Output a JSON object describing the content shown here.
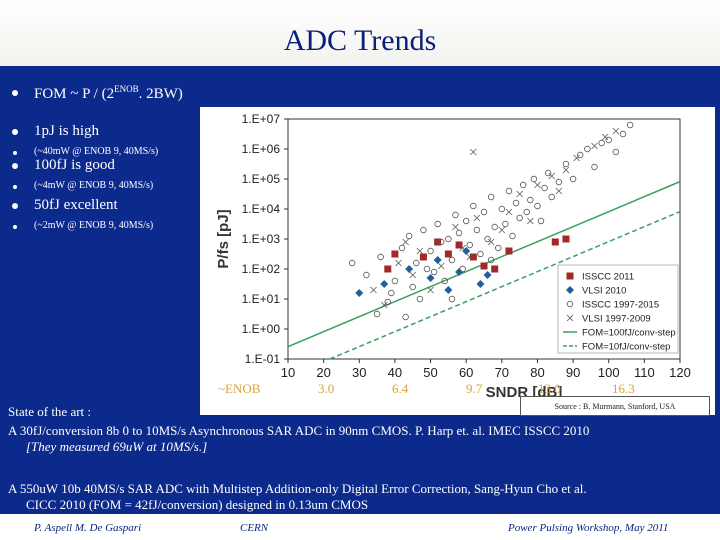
{
  "title": "ADC Trends",
  "bullets": {
    "fom_prefix": "FOM ~ P / (2",
    "fom_sup": "ENOB",
    "fom_suffix": ". 2BW)",
    "b1": "1pJ is high",
    "b1_sub": "(~40mW @ ENOB 9, 40MS/s)",
    "b2": "100fJ is good",
    "b2_sub": "(~4mW @ ENOB 9, 40MS/s)",
    "b3": "50fJ excellent",
    "b3_sub": "(~2mW @ ENOB 9, 40MS/s)"
  },
  "enob": {
    "label": "~ENOB",
    "values": [
      "3.0",
      "6.4",
      "9.7",
      "13.0",
      "16.3"
    ]
  },
  "chart_data": {
    "type": "scatter",
    "xlabel": "SNDR [dB]",
    "ylabel": "P/fs [pJ]",
    "xlim": [
      10,
      120
    ],
    "ylim_log10": [
      -1,
      7
    ],
    "x_ticks": [
      "10",
      "20",
      "30",
      "40",
      "50",
      "60",
      "70",
      "80",
      "90",
      "100",
      "110",
      "120"
    ],
    "y_ticks": [
      "1.E-01",
      "1.E+00",
      "1.E+01",
      "1.E+02",
      "1.E+03",
      "1.E+04",
      "1.E+05",
      "1.E+06",
      "1.E+07"
    ],
    "legend_position": "bottom-right",
    "series": [
      {
        "name": "ISSCC 2011",
        "marker": "square",
        "color": "#a02a2a",
        "points": [
          [
            38,
            2.0
          ],
          [
            40,
            2.5
          ],
          [
            48,
            2.4
          ],
          [
            55,
            2.5
          ],
          [
            58,
            2.8
          ],
          [
            62,
            2.4
          ],
          [
            65,
            2.1
          ],
          [
            72,
            2.6
          ],
          [
            85,
            2.9
          ],
          [
            88,
            3.0
          ],
          [
            68,
            2.0
          ],
          [
            52,
            2.9
          ]
        ]
      },
      {
        "name": "VLSI 2010",
        "marker": "diamond",
        "color": "#1f5f9a",
        "points": [
          [
            30,
            1.2
          ],
          [
            37,
            1.5
          ],
          [
            44,
            2.0
          ],
          [
            50,
            1.7
          ],
          [
            55,
            1.3
          ],
          [
            58,
            1.9
          ],
          [
            64,
            1.5
          ],
          [
            66,
            1.8
          ],
          [
            52,
            2.3
          ],
          [
            60,
            2.6
          ]
        ]
      },
      {
        "name": "ISSCC 1997-2015",
        "marker": "circle",
        "color": "#555555",
        "points": [
          [
            28,
            2.2
          ],
          [
            32,
            1.8
          ],
          [
            35,
            0.5
          ],
          [
            36,
            2.4
          ],
          [
            38,
            0.9
          ],
          [
            40,
            1.6
          ],
          [
            42,
            2.7
          ],
          [
            44,
            3.1
          ],
          [
            45,
            1.4
          ],
          [
            46,
            2.2
          ],
          [
            48,
            3.3
          ],
          [
            50,
            2.6
          ],
          [
            51,
            1.9
          ],
          [
            52,
            3.5
          ],
          [
            53,
            2.9
          ],
          [
            54,
            1.6
          ],
          [
            55,
            3.0
          ],
          [
            56,
            2.3
          ],
          [
            57,
            3.8
          ],
          [
            58,
            3.2
          ],
          [
            59,
            2.0
          ],
          [
            60,
            3.6
          ],
          [
            61,
            2.8
          ],
          [
            62,
            4.1
          ],
          [
            63,
            3.3
          ],
          [
            64,
            2.5
          ],
          [
            65,
            3.9
          ],
          [
            66,
            3.0
          ],
          [
            67,
            4.4
          ],
          [
            68,
            3.4
          ],
          [
            69,
            2.7
          ],
          [
            70,
            4.0
          ],
          [
            71,
            3.5
          ],
          [
            72,
            4.6
          ],
          [
            73,
            3.1
          ],
          [
            74,
            4.2
          ],
          [
            75,
            3.7
          ],
          [
            76,
            4.8
          ],
          [
            77,
            3.9
          ],
          [
            78,
            4.3
          ],
          [
            79,
            5.0
          ],
          [
            80,
            4.1
          ],
          [
            81,
            3.6
          ],
          [
            82,
            4.7
          ],
          [
            83,
            5.2
          ],
          [
            84,
            4.4
          ],
          [
            86,
            4.9
          ],
          [
            88,
            5.5
          ],
          [
            90,
            5.0
          ],
          [
            92,
            5.8
          ],
          [
            94,
            6.0
          ],
          [
            96,
            5.4
          ],
          [
            98,
            6.2
          ],
          [
            100,
            6.3
          ],
          [
            102,
            5.9
          ],
          [
            104,
            6.5
          ],
          [
            106,
            6.8
          ],
          [
            47,
            1.0
          ],
          [
            43,
            0.4
          ],
          [
            39,
            1.2
          ],
          [
            56,
            1.0
          ],
          [
            49,
            2.0
          ],
          [
            67,
            2.3
          ]
        ]
      },
      {
        "name": "VLSI 1997-2009",
        "marker": "x",
        "color": "#555555",
        "points": [
          [
            34,
            1.3
          ],
          [
            41,
            2.2
          ],
          [
            47,
            2.6
          ],
          [
            53,
            2.1
          ],
          [
            57,
            3.4
          ],
          [
            61,
            2.4
          ],
          [
            63,
            3.7
          ],
          [
            67,
            2.9
          ],
          [
            70,
            3.3
          ],
          [
            72,
            3.9
          ],
          [
            75,
            4.5
          ],
          [
            78,
            3.6
          ],
          [
            80,
            4.8
          ],
          [
            84,
            5.1
          ],
          [
            86,
            4.6
          ],
          [
            88,
            5.3
          ],
          [
            91,
            5.7
          ],
          [
            96,
            6.1
          ],
          [
            99,
            6.4
          ],
          [
            102,
            6.6
          ],
          [
            37,
            0.8
          ],
          [
            45,
            1.8
          ],
          [
            50,
            1.3
          ],
          [
            59,
            2.7
          ],
          [
            62,
            5.9
          ],
          [
            43,
            2.9
          ]
        ]
      }
    ],
    "lines": [
      {
        "name": "FOM=100fJ/conv-step",
        "style": "solid",
        "color": "#3aa060",
        "log_fom_fj": 2
      },
      {
        "name": "FOM=10fJ/conv-step",
        "style": "dashed",
        "color": "#3aa060",
        "log_fom_fj": 1
      }
    ]
  },
  "source": "Source : B. Murmann, Stanford, USA",
  "notes": {
    "state_label": "State of the art :",
    "line1": "A 30fJ/conversion 8b 0 to 10MS/s Asynchronous SAR ADC in 90nm CMOS. P. Harp et. al.  IMEC     ISSCC 2010",
    "line2": "[They measured 69uW at 10MS/s.]",
    "line3": "A 550uW 10b 40MS/s SAR ADC with Multistep Addition-only Digital Error Correction, Sang-Hyun Cho et al.",
    "line4": "CICC 2010  (FOM = 42fJ/conversion)   designed in 0.13um CMOS"
  },
  "footer": {
    "authors": "P. Aspell     M. De Gaspari",
    "org": "CERN",
    "event": "Power Pulsing Workshop, May 2011"
  }
}
